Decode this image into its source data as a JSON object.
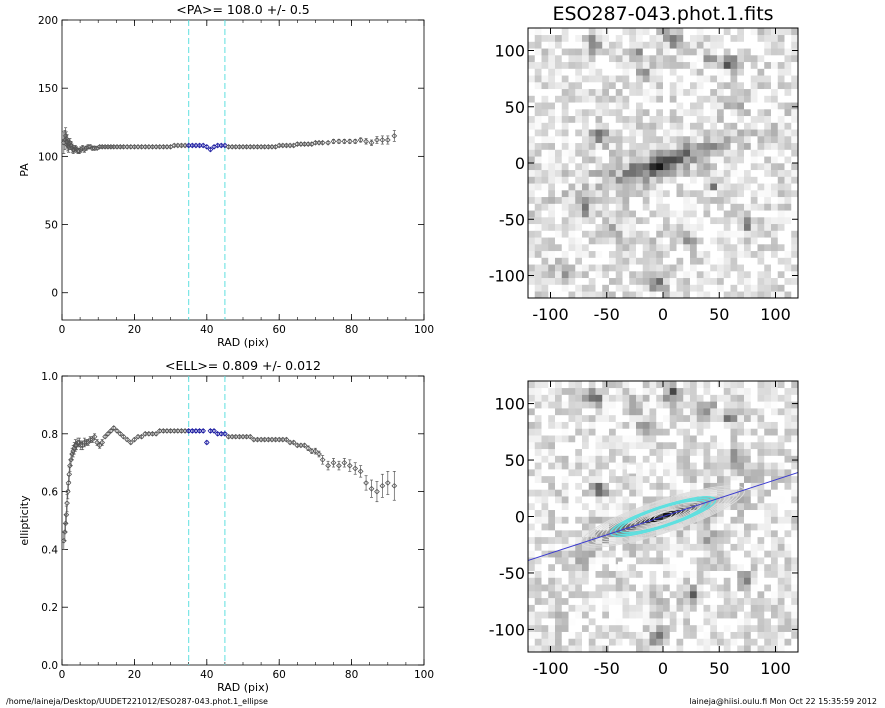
{
  "chart_data": [
    {
      "id": "pa",
      "type": "scatter",
      "title": "<PA>= 108.0 +/-   0.5",
      "xlabel": "RAD (pix)",
      "ylabel": "PA",
      "xlim": [
        0,
        100
      ],
      "ylim": [
        -20,
        200
      ],
      "xticks": [
        0,
        20,
        40,
        60,
        80,
        100
      ],
      "yticks": [
        0,
        50,
        100,
        150,
        200
      ],
      "vlines": [
        35,
        45
      ],
      "grid": false,
      "points_color": "#555555",
      "highlight_color": "#1a1aa0",
      "vline_color": "#5fe0e0",
      "highlight_range": [
        35,
        45
      ],
      "x": [
        0.5,
        0.8,
        1.0,
        1.2,
        1.4,
        1.6,
        1.8,
        2.0,
        2.2,
        2.5,
        2.8,
        3.1,
        3.4,
        3.7,
        4.0,
        4.4,
        4.8,
        5.2,
        5.7,
        6.2,
        6.7,
        7.2,
        7.8,
        8.4,
        9.0,
        9.7,
        10.4,
        11.1,
        11.9,
        12.7,
        13.5,
        14.3,
        15.2,
        16.1,
        17.0,
        18.0,
        19.0,
        20.0,
        21.0,
        22.0,
        23.0,
        24.0,
        25.0,
        26.0,
        27.0,
        28.0,
        29.0,
        30.0,
        31.0,
        32.0,
        33.0,
        34.0,
        35.0,
        36.0,
        37.0,
        38.0,
        39.0,
        40.0,
        41.0,
        42.0,
        43.0,
        44.0,
        45.0,
        46.0,
        47.0,
        48.0,
        49.0,
        50.0,
        51.0,
        52.0,
        53.0,
        54.0,
        55.0,
        56.0,
        57.0,
        58.0,
        59.0,
        60.0,
        61.0,
        62.0,
        63.0,
        64.0,
        65.0,
        66.0,
        67.0,
        68.0,
        69.0,
        70.0,
        71.0,
        72.0,
        73.5,
        75.0,
        76.5,
        78.0,
        79.5,
        81.0,
        82.5,
        84.0,
        85.5,
        87.0,
        88.5,
        90.0,
        91.8
      ],
      "y": [
        110,
        112,
        115,
        113,
        111,
        108,
        107,
        109,
        110,
        108,
        106,
        105,
        105,
        106,
        105,
        104,
        104,
        105,
        106,
        105,
        106,
        107,
        107,
        106,
        106,
        106,
        107,
        107,
        107,
        107,
        107,
        107,
        107,
        107,
        107,
        107,
        107,
        107,
        107,
        107,
        107,
        107,
        107,
        107,
        107,
        107,
        107,
        107,
        108,
        108,
        108,
        108,
        108,
        108,
        108,
        108,
        108,
        107,
        105,
        107,
        108,
        108,
        108,
        107,
        107,
        107,
        107,
        107,
        107,
        107,
        107,
        107,
        107,
        107,
        107,
        107,
        107,
        108,
        108,
        108,
        108,
        108,
        109,
        109,
        109,
        109,
        109,
        110,
        110,
        110,
        110,
        111,
        111,
        111,
        111,
        111,
        112,
        111,
        110,
        112,
        112,
        112,
        115
      ],
      "err": [
        8,
        7,
        6,
        5,
        5,
        4,
        4,
        4,
        3,
        3,
        3,
        3,
        2,
        2,
        2,
        2,
        2,
        2,
        2,
        2,
        1.5,
        1.5,
        1.5,
        1.5,
        1.5,
        1,
        1,
        1,
        1,
        1,
        1,
        1,
        1,
        1,
        1,
        1,
        1,
        1,
        1,
        1,
        1,
        1,
        1,
        1,
        1,
        1,
        1,
        1,
        1,
        1,
        1,
        1,
        1,
        1,
        1,
        1,
        1,
        1,
        1,
        1,
        1,
        1,
        1,
        1,
        1,
        1,
        1,
        1,
        1,
        1,
        1,
        1,
        1,
        1,
        1,
        1,
        1,
        1,
        1,
        1,
        1,
        1,
        1,
        1,
        1,
        1,
        1,
        1,
        1,
        1,
        1,
        1.5,
        1.5,
        1.5,
        1.5,
        1.5,
        1.5,
        2,
        2,
        2.5,
        3,
        3,
        4
      ]
    },
    {
      "id": "ell",
      "type": "scatter",
      "title": "<ELL>= 0.809 +/-  0.012",
      "xlabel": "RAD (pix)",
      "ylabel": "ellipticity",
      "xlim": [
        0,
        100
      ],
      "ylim": [
        0.0,
        1.0
      ],
      "xticks": [
        0,
        20,
        40,
        60,
        80,
        100
      ],
      "yticks": [
        "0.0",
        "0.2",
        "0.4",
        "0.6",
        "0.8",
        "1.0"
      ],
      "vlines": [
        35,
        45
      ],
      "grid": false,
      "points_color": "#555555",
      "highlight_color": "#1a1aa0",
      "vline_color": "#5fe0e0",
      "highlight_range": [
        35,
        45
      ],
      "x": [
        0.5,
        0.8,
        1.0,
        1.2,
        1.4,
        1.6,
        1.8,
        2.0,
        2.2,
        2.5,
        2.8,
        3.1,
        3.4,
        3.7,
        4.0,
        4.4,
        4.8,
        5.2,
        5.7,
        6.2,
        6.7,
        7.2,
        7.8,
        8.4,
        9.0,
        9.7,
        10.4,
        11.1,
        11.9,
        12.7,
        13.5,
        14.3,
        15.2,
        16.1,
        17.0,
        18.0,
        19.0,
        20.0,
        21.0,
        22.0,
        23.0,
        24.0,
        25.0,
        26.0,
        27.0,
        28.0,
        29.0,
        30.0,
        31.0,
        32.0,
        33.0,
        34.0,
        35.0,
        36.0,
        37.0,
        38.0,
        39.0,
        40.0,
        41.0,
        42.0,
        43.0,
        44.0,
        45.0,
        46.0,
        47.0,
        48.0,
        49.0,
        50.0,
        51.0,
        52.0,
        53.0,
        54.0,
        55.0,
        56.0,
        57.0,
        58.0,
        59.0,
        60.0,
        61.0,
        62.0,
        63.0,
        64.0,
        65.0,
        66.0,
        67.0,
        68.0,
        69.0,
        70.0,
        71.0,
        72.0,
        73.5,
        75.0,
        76.5,
        78.0,
        79.5,
        81.0,
        82.5,
        84.0,
        85.5,
        87.0,
        88.5,
        90.0,
        91.8
      ],
      "y": [
        0.43,
        0.46,
        0.49,
        0.52,
        0.56,
        0.6,
        0.63,
        0.66,
        0.69,
        0.71,
        0.73,
        0.74,
        0.75,
        0.76,
        0.76,
        0.77,
        0.77,
        0.76,
        0.76,
        0.77,
        0.77,
        0.77,
        0.78,
        0.78,
        0.79,
        0.77,
        0.76,
        0.77,
        0.79,
        0.8,
        0.81,
        0.82,
        0.81,
        0.8,
        0.79,
        0.78,
        0.77,
        0.78,
        0.79,
        0.79,
        0.8,
        0.8,
        0.8,
        0.8,
        0.81,
        0.81,
        0.81,
        0.81,
        0.81,
        0.81,
        0.81,
        0.81,
        0.81,
        0.81,
        0.81,
        0.81,
        0.81,
        0.77,
        0.81,
        0.81,
        0.8,
        0.8,
        0.8,
        0.79,
        0.79,
        0.79,
        0.79,
        0.79,
        0.79,
        0.79,
        0.78,
        0.78,
        0.78,
        0.78,
        0.78,
        0.78,
        0.78,
        0.78,
        0.78,
        0.78,
        0.77,
        0.77,
        0.76,
        0.76,
        0.76,
        0.75,
        0.74,
        0.74,
        0.73,
        0.71,
        0.69,
        0.7,
        0.69,
        0.7,
        0.69,
        0.68,
        0.67,
        0.63,
        0.61,
        0.6,
        0.62,
        0.63,
        0.62
      ],
      "err": [
        0.03,
        0.03,
        0.03,
        0.03,
        0.03,
        0.025,
        0.025,
        0.025,
        0.02,
        0.02,
        0.02,
        0.02,
        0.02,
        0.02,
        0.015,
        0.015,
        0.015,
        0.015,
        0.015,
        0.015,
        0.01,
        0.01,
        0.01,
        0.01,
        0.01,
        0.01,
        0.01,
        0.01,
        0.005,
        0.005,
        0.005,
        0.005,
        0.005,
        0.005,
        0.005,
        0.005,
        0.005,
        0.005,
        0.005,
        0.005,
        0.005,
        0.005,
        0.005,
        0.005,
        0.005,
        0.005,
        0.005,
        0.005,
        0.005,
        0.005,
        0.005,
        0.005,
        0.005,
        0.005,
        0.005,
        0.005,
        0.005,
        0.005,
        0.005,
        0.005,
        0.005,
        0.005,
        0.005,
        0.005,
        0.005,
        0.005,
        0.005,
        0.005,
        0.005,
        0.005,
        0.005,
        0.005,
        0.005,
        0.005,
        0.005,
        0.005,
        0.005,
        0.005,
        0.005,
        0.005,
        0.005,
        0.005,
        0.005,
        0.005,
        0.005,
        0.008,
        0.008,
        0.01,
        0.01,
        0.015,
        0.015,
        0.015,
        0.015,
        0.015,
        0.02,
        0.02,
        0.02,
        0.025,
        0.03,
        0.035,
        0.04,
        0.04,
        0.05
      ]
    },
    {
      "id": "img1",
      "type": "heatmap",
      "title": "ESO287-043.phot.1.fits",
      "xlim": [
        -120,
        120
      ],
      "ylim": [
        -120,
        120
      ],
      "xticks": [
        -100,
        -50,
        0,
        50,
        100
      ],
      "yticks": [
        -100,
        -50,
        0,
        50,
        100
      ],
      "colormap": "gray-inverted",
      "galaxy": {
        "center": [
          0,
          0
        ],
        "pa_deg": 108,
        "ellipticity": 0.8,
        "semi_major": 70
      }
    },
    {
      "id": "img2",
      "type": "heatmap",
      "title": "",
      "xlim": [
        -120,
        120
      ],
      "ylim": [
        -120,
        120
      ],
      "xticks": [
        -100,
        -50,
        0,
        50,
        100
      ],
      "yticks": [
        -100,
        -50,
        0,
        50,
        100
      ],
      "colormap": "gray-inverted",
      "contour_color": "#dddddd",
      "highlight_contour_color": "#5fe0e0",
      "major_axis_color": "#3a3ad0",
      "galaxy": {
        "center": [
          0,
          0
        ],
        "pa_deg": 108,
        "ellipticity": 0.8,
        "semi_major": 70
      }
    }
  ],
  "footer": {
    "left": "/home/laineja/Desktop/UUDET221012/ESO287-043.phot.1_ellipse",
    "right": "laineja@hiisi.oulu.fi  Mon Oct 22 15:35:59 2012"
  }
}
